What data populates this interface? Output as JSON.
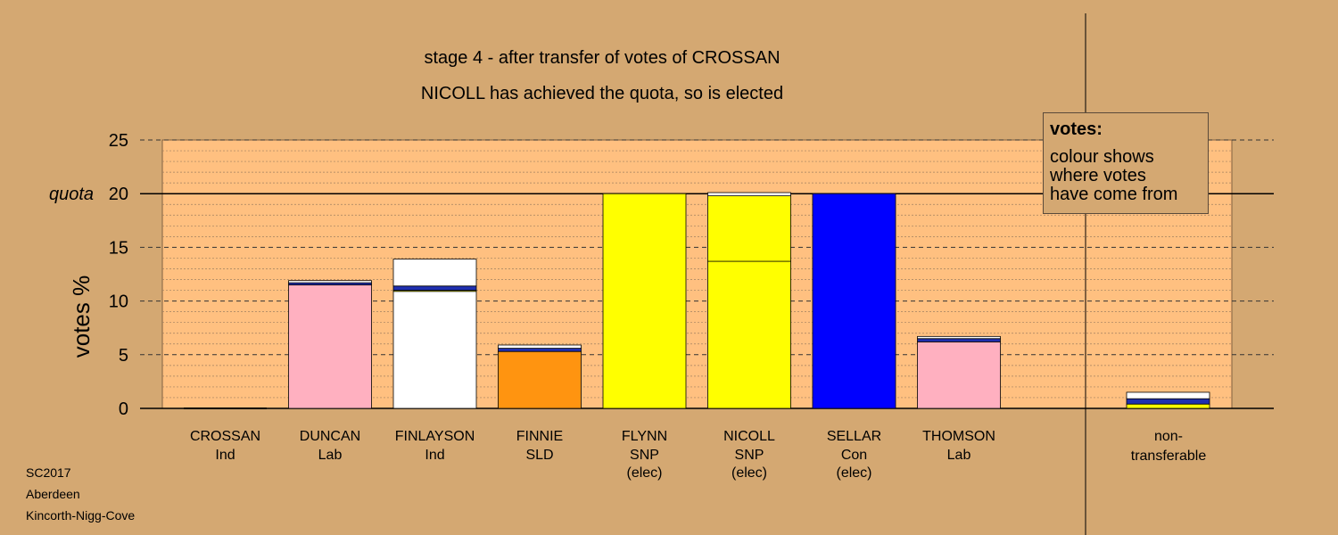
{
  "chart_data": {
    "type": "bar",
    "stacked": true,
    "title": "stage 4 - after transfer of votes of CROSSAN",
    "subtitle": "NICOLL has achieved the quota, so is elected",
    "ylabel": "votes %",
    "ylim": [
      0,
      25
    ],
    "yticks": [
      0,
      5,
      10,
      15,
      20,
      25
    ],
    "quota": {
      "label": "quota",
      "value": 20
    },
    "grid": true,
    "candidates": [
      {
        "name": "CROSSAN",
        "party": "Ind",
        "status": "",
        "segments": []
      },
      {
        "name": "DUNCAN",
        "party": "Lab",
        "status": "",
        "segments": [
          {
            "value": 11.5,
            "color": "#ffb0c0"
          },
          {
            "value": 0.2,
            "color": "#1f2fb0"
          },
          {
            "value": 0.2,
            "color": "#ffffff"
          }
        ]
      },
      {
        "name": "FINLAYSON",
        "party": "Ind",
        "status": "",
        "segments": [
          {
            "value": 10.9,
            "color": "#ffffff"
          },
          {
            "value": 0.1,
            "color": "#ffff00"
          },
          {
            "value": 0.4,
            "color": "#1f2fb0"
          },
          {
            "value": 2.5,
            "color": "#ffffff"
          }
        ]
      },
      {
        "name": "FINNIE",
        "party": "SLD",
        "status": "",
        "segments": [
          {
            "value": 5.3,
            "color": "#ff9410"
          },
          {
            "value": 0.3,
            "color": "#1f2fb0"
          },
          {
            "value": 0.3,
            "color": "#ffffff"
          }
        ]
      },
      {
        "name": "FLYNN",
        "party": "SNP",
        "status": "(elec)",
        "segments": [
          {
            "value": 20.0,
            "color": "#ffff00"
          }
        ]
      },
      {
        "name": "NICOLL",
        "party": "SNP",
        "status": "(elec)",
        "segments": [
          {
            "value": 13.7,
            "color": "#ffff00"
          },
          {
            "value": 6.1,
            "color": "#ffff00"
          },
          {
            "value": 0.3,
            "color": "#ffffff"
          }
        ]
      },
      {
        "name": "SELLAR",
        "party": "Con",
        "status": "(elec)",
        "segments": [
          {
            "value": 20.0,
            "color": "#0000ff"
          }
        ]
      },
      {
        "name": "THOMSON",
        "party": "Lab",
        "status": "",
        "segments": [
          {
            "value": 6.2,
            "color": "#ffb0c0"
          },
          {
            "value": 0.3,
            "color": "#1f2fb0"
          },
          {
            "value": 0.2,
            "color": "#ffffff"
          }
        ]
      }
    ],
    "non_transferable": {
      "label_lines": [
        "non-",
        "transferable"
      ],
      "segments": [
        {
          "value": 0.4,
          "color": "#ffff00"
        },
        {
          "value": 0.5,
          "color": "#1f2fb0"
        },
        {
          "value": 0.6,
          "color": "#ffffff"
        }
      ]
    }
  },
  "legend": {
    "title": "votes:",
    "lines": [
      "colour shows",
      "where votes",
      "have come from"
    ]
  },
  "footer": [
    "SC2017",
    "Aberdeen",
    "Kincorth-Nigg-Cove"
  ]
}
